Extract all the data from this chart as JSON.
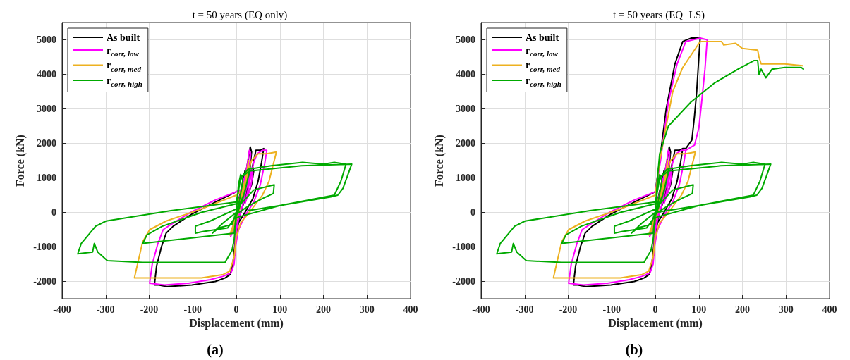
{
  "chart_data": [
    {
      "type": "line",
      "title": "t = 50 years (EQ only)",
      "xlabel": "Displacement (mm)",
      "ylabel": "Force (kN)",
      "annotations": [
        "(a)"
      ],
      "xlim": [
        -400,
        400
      ],
      "xticks": [
        -400,
        -300,
        -200,
        -100,
        0,
        100,
        200,
        300,
        400
      ],
      "ylim": [
        -2500,
        5500
      ],
      "yticks": [
        -2000,
        -1000,
        0,
        1000,
        2000,
        3000,
        4000,
        5000
      ],
      "grid": true,
      "legend": "top left",
      "series": [
        {
          "name": "As built",
          "color": "#000000",
          "x": [
            0,
            8,
            15,
            20,
            15,
            5,
            -5,
            -12,
            -5,
            5,
            18,
            27,
            32,
            35,
            30,
            20,
            8,
            0,
            -5,
            -2,
            8,
            25,
            38,
            40,
            35,
            20,
            30,
            40,
            45,
            55,
            63,
            58,
            50,
            38,
            20,
            5,
            -3,
            -8,
            -14,
            -26,
            -48,
            -102,
            -159,
            -178,
            -188,
            -183,
            -172,
            -161,
            -145,
            -102,
            -48,
            0,
            10
          ],
          "values": [
            0,
            500,
            900,
            1200,
            700,
            0,
            -400,
            -650,
            -300,
            300,
            900,
            1500,
            1900,
            1750,
            1100,
            400,
            -100,
            -500,
            -1300,
            -700,
            200,
            800,
            1300,
            1200,
            800,
            300,
            900,
            1500,
            1800,
            1800,
            1850,
            1450,
            900,
            400,
            0,
            -300,
            -900,
            -1500,
            -1800,
            -1900,
            -2000,
            -2100,
            -2150,
            -2100,
            -2100,
            -1550,
            -1000,
            -600,
            -400,
            -50,
            300,
            600,
            650
          ]
        },
        {
          "name": "r$_{corr, low}$",
          "color": "#ff00ff",
          "x": [
            0,
            8,
            15,
            22,
            15,
            5,
            -5,
            -13,
            -5,
            5,
            18,
            26,
            30,
            33,
            28,
            18,
            6,
            0,
            -3,
            -2,
            8,
            25,
            36,
            38,
            33,
            20,
            30,
            40,
            48,
            60,
            70,
            65,
            55,
            40,
            20,
            5,
            -2,
            -5,
            -12,
            -30,
            -60,
            -110,
            -165,
            -199,
            -193,
            -180,
            -168,
            -150,
            -105,
            -50,
            0,
            10
          ],
          "values": [
            0,
            450,
            850,
            1150,
            650,
            0,
            -450,
            -700,
            -350,
            250,
            850,
            1450,
            1800,
            1700,
            1050,
            350,
            -150,
            -550,
            -1250,
            -700,
            150,
            750,
            1250,
            1150,
            750,
            250,
            850,
            1450,
            1700,
            1800,
            1800,
            1400,
            800,
            300,
            -100,
            -500,
            -1000,
            -1500,
            -1750,
            -1850,
            -1950,
            -2050,
            -2100,
            -2050,
            -1500,
            -900,
            -500,
            -350,
            0,
            350,
            600,
            650
          ]
        },
        {
          "name": "r$_{corr, med}$",
          "color": "#edb120",
          "x": [
            0,
            10,
            20,
            25,
            28,
            25,
            15,
            5,
            -5,
            -15,
            -5,
            5,
            20,
            35,
            50,
            70,
            92,
            85,
            75,
            60,
            30,
            10,
            0,
            -5,
            -15,
            -30,
            -80,
            -172,
            -234,
            -225,
            -215,
            -199,
            -161,
            -80,
            0,
            10
          ],
          "values": [
            0,
            400,
            900,
            1200,
            1500,
            1000,
            500,
            0,
            -450,
            -650,
            -300,
            300,
            900,
            1500,
            1700,
            1700,
            1750,
            1400,
            900,
            500,
            0,
            -300,
            -700,
            -1300,
            -1700,
            -1800,
            -1900,
            -1900,
            -1900,
            -1400,
            -850,
            -500,
            -250,
            100,
            500,
            600
          ]
        },
        {
          "name": "r$_{corr, high}$",
          "color": "#00aa00",
          "x": [
            0,
            5,
            10,
            15,
            5,
            -10,
            -40,
            -55,
            -30,
            0,
            20,
            30,
            27,
            15,
            0,
            -20,
            -75,
            -94,
            -94,
            -60,
            0,
            40,
            87,
            85,
            60,
            30,
            0,
            -5,
            -215,
            -205,
            -170,
            -80,
            0,
            10,
            27,
            80,
            152,
            200,
            225,
            252,
            240,
            225,
            100,
            0,
            -5,
            -10,
            -26,
            -100,
            -215,
            -296,
            -318,
            -326,
            -330,
            -364,
            -356,
            -323,
            -299,
            -150,
            0,
            10,
            30,
            150,
            265,
            245,
            233,
            217,
            100,
            27
          ],
          "values": [
            0,
            800,
            1100,
            900,
            200,
            -350,
            -450,
            -600,
            -300,
            0,
            600,
            1200,
            1000,
            400,
            -100,
            -450,
            -550,
            -600,
            -400,
            -250,
            100,
            650,
            800,
            550,
            400,
            200,
            -50,
            -600,
            -900,
            -650,
            -400,
            0,
            250,
            1000,
            1250,
            1350,
            1450,
            1400,
            1450,
            1400,
            900,
            500,
            200,
            -150,
            -800,
            -1100,
            -1450,
            -1450,
            -1450,
            -1400,
            -1150,
            -900,
            -1150,
            -1200,
            -900,
            -400,
            -250,
            50,
            300,
            1000,
            1200,
            1350,
            1400,
            700,
            500,
            450,
            200,
            50
          ]
        }
      ]
    },
    {
      "type": "line",
      "title": "t = 50 years (EQ+LS)",
      "xlabel": "Displacement (mm)",
      "ylabel": "Force (kN)",
      "annotations": [
        "(b)"
      ],
      "xlim": [
        -400,
        400
      ],
      "xticks": [
        -400,
        -300,
        -200,
        -100,
        0,
        100,
        200,
        300,
        400
      ],
      "ylim": [
        -2500,
        5500
      ],
      "yticks": [
        -2000,
        -1000,
        0,
        1000,
        2000,
        3000,
        4000,
        5000
      ],
      "grid": true,
      "legend": "top left",
      "series": [
        {
          "name": "As built",
          "color": "#000000",
          "x": [
            0,
            8,
            15,
            20,
            15,
            5,
            -5,
            -12,
            -5,
            5,
            18,
            27,
            32,
            35,
            30,
            20,
            8,
            0,
            -5,
            -2,
            8,
            25,
            38,
            40,
            35,
            20,
            30,
            40,
            45,
            55,
            63,
            58,
            50,
            38,
            20,
            5,
            -3,
            -8,
            -14,
            -26,
            -48,
            -102,
            -159,
            -178,
            -188,
            -183,
            -172,
            -161,
            -145,
            -102,
            -48,
            0,
            10,
            25,
            45,
            63,
            82,
            103,
            100,
            95,
            90,
            84,
            70,
            63
          ],
          "values": [
            0,
            500,
            900,
            1200,
            700,
            0,
            -400,
            -650,
            -300,
            300,
            900,
            1500,
            1900,
            1750,
            1100,
            400,
            -100,
            -500,
            -1300,
            -700,
            200,
            800,
            1300,
            1200,
            800,
            300,
            900,
            1500,
            1800,
            1800,
            1850,
            1450,
            900,
            400,
            0,
            -300,
            -900,
            -1500,
            -1800,
            -1900,
            -2000,
            -2100,
            -2150,
            -2100,
            -2100,
            -1550,
            -1000,
            -600,
            -400,
            -50,
            300,
            600,
            1500,
            3000,
            4300,
            4950,
            5050,
            5050,
            4500,
            3500,
            2800,
            2100,
            1850,
            1850
          ]
        },
        {
          "name": "r$_{corr, low}$",
          "color": "#ff00ff",
          "x": [
            0,
            8,
            15,
            22,
            15,
            5,
            -5,
            -13,
            -5,
            5,
            18,
            26,
            30,
            33,
            28,
            18,
            6,
            0,
            -3,
            -2,
            8,
            25,
            36,
            38,
            33,
            20,
            30,
            40,
            48,
            60,
            70,
            65,
            55,
            40,
            20,
            5,
            -2,
            -5,
            -12,
            -30,
            -60,
            -110,
            -165,
            -199,
            -193,
            -180,
            -168,
            -150,
            -105,
            -50,
            0,
            12,
            30,
            50,
            70,
            103,
            119,
            114,
            106,
            100,
            90,
            70
          ],
          "values": [
            0,
            450,
            850,
            1150,
            650,
            0,
            -450,
            -700,
            -350,
            250,
            850,
            1450,
            1800,
            1700,
            1050,
            350,
            -150,
            -550,
            -1250,
            -700,
            150,
            750,
            1250,
            1150,
            750,
            250,
            850,
            1450,
            1700,
            1800,
            1800,
            1400,
            800,
            300,
            -100,
            -500,
            -1000,
            -1500,
            -1750,
            -1850,
            -1950,
            -2050,
            -2100,
            -2050,
            -1500,
            -900,
            -500,
            -350,
            0,
            350,
            600,
            1500,
            3200,
            4300,
            4950,
            5050,
            5000,
            4150,
            3150,
            2450,
            1950,
            1800
          ]
        },
        {
          "name": "r$_{corr, med}$",
          "color": "#edb120",
          "x": [
            0,
            10,
            20,
            25,
            28,
            25,
            15,
            5,
            -5,
            -15,
            -5,
            5,
            20,
            35,
            50,
            70,
            92,
            85,
            75,
            60,
            30,
            10,
            0,
            -5,
            -15,
            -30,
            -80,
            -172,
            -234,
            -225,
            -215,
            -199,
            -161,
            -80,
            0,
            10,
            40,
            63,
            103,
            135,
            152,
            157,
            184,
            200,
            235,
            238,
            243,
            265,
            297,
            338
          ],
          "values": [
            0,
            400,
            900,
            1200,
            1500,
            1000,
            500,
            0,
            -450,
            -650,
            -300,
            300,
            900,
            1500,
            1700,
            1700,
            1750,
            1400,
            900,
            500,
            0,
            -300,
            -700,
            -1300,
            -1700,
            -1800,
            -1900,
            -1900,
            -1900,
            -1400,
            -850,
            -500,
            -250,
            100,
            500,
            1500,
            3500,
            4200,
            4950,
            4950,
            4950,
            4850,
            4900,
            4750,
            4700,
            4500,
            4300,
            4300,
            4300,
            4250
          ]
        },
        {
          "name": "r$_{corr, high}$",
          "color": "#00aa00",
          "x": [
            0,
            5,
            10,
            15,
            5,
            -10,
            -40,
            -55,
            -30,
            0,
            20,
            30,
            27,
            15,
            0,
            -20,
            -75,
            -94,
            -94,
            -60,
            0,
            40,
            87,
            85,
            60,
            30,
            0,
            -5,
            -215,
            -205,
            -170,
            -80,
            0,
            10,
            27,
            80,
            152,
            200,
            225,
            252,
            240,
            225,
            100,
            0,
            -5,
            -10,
            -26,
            -100,
            -215,
            -296,
            -318,
            -326,
            -330,
            -364,
            -356,
            -323,
            -299,
            -150,
            0,
            10,
            30,
            150,
            265,
            245,
            233,
            217,
            100,
            27,
            0,
            5,
            10,
            30,
            82,
            136,
            190,
            227,
            235,
            238,
            243,
            254,
            268,
            297,
            335,
            340
          ],
          "values": [
            0,
            800,
            1100,
            900,
            200,
            -350,
            -450,
            -600,
            -300,
            0,
            600,
            1200,
            1000,
            400,
            -100,
            -450,
            -550,
            -600,
            -400,
            -250,
            100,
            650,
            800,
            550,
            400,
            200,
            -50,
            -600,
            -900,
            -650,
            -400,
            0,
            250,
            1000,
            1250,
            1350,
            1450,
            1400,
            1450,
            1400,
            900,
            500,
            200,
            -150,
            -800,
            -1100,
            -1450,
            -1450,
            -1450,
            -1400,
            -1150,
            -900,
            -1150,
            -1200,
            -900,
            -400,
            -250,
            50,
            300,
            1000,
            1200,
            1350,
            1400,
            700,
            500,
            450,
            200,
            50,
            0,
            1000,
            1700,
            2500,
            3200,
            3750,
            4150,
            4400,
            4400,
            4000,
            4150,
            3900,
            4150,
            4200,
            4200,
            4150
          ]
        }
      ]
    }
  ]
}
